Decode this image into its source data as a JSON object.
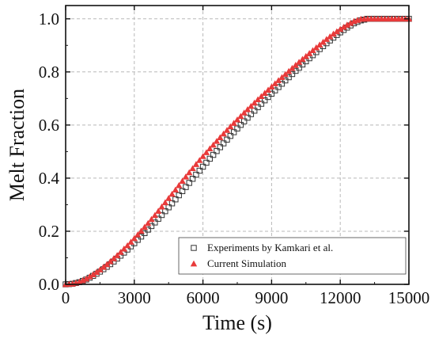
{
  "chart_data": {
    "type": "scatter",
    "xlabel": "Time (s)",
    "ylabel": "Melt Fraction",
    "xlim": [
      0,
      15000
    ],
    "ylim": [
      0,
      1.05
    ],
    "xticks": [
      0,
      3000,
      6000,
      9000,
      12000,
      15000
    ],
    "xtick_labels": [
      "0",
      "3000",
      "6000",
      "9000",
      "12000",
      "15000"
    ],
    "yticks": [
      0.0,
      0.2,
      0.4,
      0.6,
      0.8,
      1.0
    ],
    "ytick_labels": [
      "0.0",
      "0.2",
      "0.4",
      "0.6",
      "0.8",
      "1.0"
    ],
    "grid": true,
    "legend_position": "bottom-right",
    "series": [
      {
        "name": "Experiments by Kamkari et al.",
        "marker": "open-square",
        "color": "#333333",
        "x": [
          0,
          300,
          600,
          900,
          1200,
          1500,
          1800,
          2100,
          2400,
          2700,
          3000,
          3300,
          3600,
          3900,
          4200,
          4500,
          4800,
          5100,
          5400,
          5700,
          6000,
          6300,
          6600,
          6900,
          7200,
          7500,
          7800,
          8100,
          8400,
          8700,
          9000,
          9300,
          9600,
          9900,
          10200,
          10500,
          10800,
          11100,
          11400,
          11700,
          12000,
          12300,
          12600,
          12900,
          13200,
          13500,
          13800,
          14100,
          14400,
          14700,
          15000
        ],
        "y": [
          0.0,
          0.002,
          0.008,
          0.018,
          0.032,
          0.048,
          0.066,
          0.086,
          0.108,
          0.131,
          0.155,
          0.18,
          0.206,
          0.233,
          0.261,
          0.29,
          0.32,
          0.351,
          0.382,
          0.413,
          0.443,
          0.473,
          0.502,
          0.531,
          0.559,
          0.587,
          0.614,
          0.641,
          0.667,
          0.693,
          0.718,
          0.743,
          0.768,
          0.792,
          0.816,
          0.84,
          0.863,
          0.886,
          0.908,
          0.929,
          0.949,
          0.967,
          0.983,
          0.994,
          1.0,
          1.0,
          1.0,
          1.0,
          1.0,
          1.0,
          1.0
        ]
      },
      {
        "name": "Current Simulation",
        "marker": "filled-triangle",
        "color": "#e83a3a",
        "x": [
          0,
          300,
          600,
          900,
          1200,
          1500,
          1800,
          2100,
          2400,
          2700,
          3000,
          3300,
          3600,
          3900,
          4200,
          4500,
          4800,
          5100,
          5400,
          5700,
          6000,
          6300,
          6600,
          6900,
          7200,
          7500,
          7800,
          8100,
          8400,
          8700,
          9000,
          9300,
          9600,
          9900,
          10200,
          10500,
          10800,
          11100,
          11400,
          11700,
          12000,
          12300,
          12600,
          12900,
          13200,
          13500,
          13800,
          14100,
          14400,
          14700,
          15000
        ],
        "y": [
          0.0,
          0.002,
          0.009,
          0.021,
          0.037,
          0.055,
          0.075,
          0.097,
          0.121,
          0.146,
          0.173,
          0.201,
          0.23,
          0.26,
          0.292,
          0.324,
          0.356,
          0.389,
          0.421,
          0.452,
          0.482,
          0.511,
          0.539,
          0.567,
          0.594,
          0.62,
          0.646,
          0.671,
          0.696,
          0.72,
          0.744,
          0.768,
          0.791,
          0.814,
          0.837,
          0.859,
          0.881,
          0.902,
          0.923,
          0.943,
          0.961,
          0.977,
          0.991,
          0.999,
          1.0,
          1.0,
          1.0,
          1.0,
          1.0,
          1.0,
          1.0
        ]
      }
    ]
  }
}
